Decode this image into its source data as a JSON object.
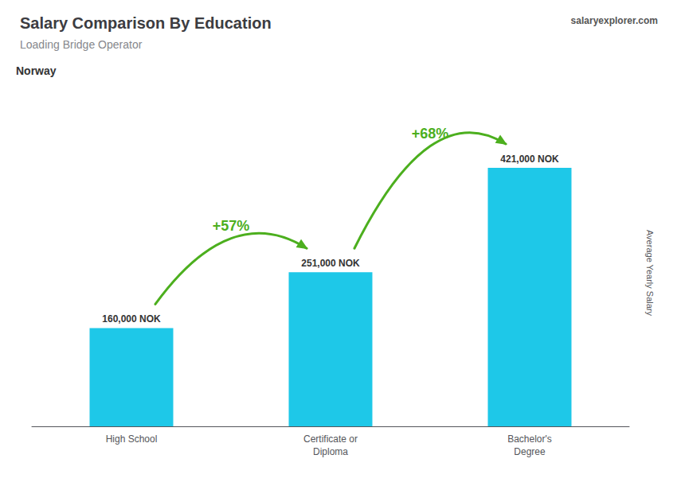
{
  "chart_data": {
    "type": "bar",
    "title": "Salary Comparison By Education",
    "subtitle": "Loading Bridge Operator",
    "ylabel": "Average Yearly Salary",
    "annotations": [
      "Norway",
      "salaryexplorer.com"
    ],
    "change_labels": [
      "+57%",
      "+68%"
    ],
    "categories": [
      "High School",
      "Certificate or\nDiploma",
      "Bachelor's\nDegree"
    ],
    "values": [
      160000,
      251000,
      421000
    ],
    "value_labels": [
      "160,000 NOK",
      "251,000 NOK",
      "421,000 NOK"
    ],
    "data_labels": true,
    "color": "#1ec8e8",
    "ylim": [
      0,
      500000
    ],
    "tick_labels": false,
    "grid": false
  }
}
